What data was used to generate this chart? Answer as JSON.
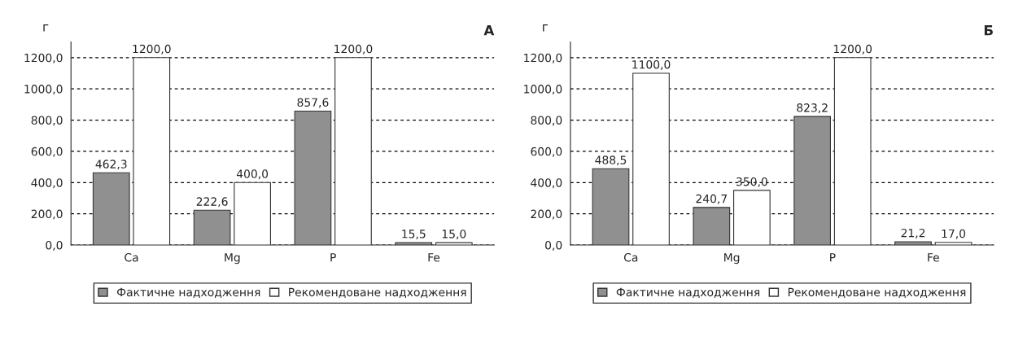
{
  "chart_data": [
    {
      "type": "bar",
      "title": "А",
      "ylabel": "г",
      "categories": [
        "Ca",
        "Mg",
        "P",
        "Fe"
      ],
      "series": [
        {
          "name": "Фактичне надходження",
          "color": "#909090",
          "values": [
            462.3,
            222.6,
            857.6,
            15.5
          ],
          "value_labels": [
            "462,3",
            "222,6",
            "857,6",
            "15,5"
          ]
        },
        {
          "name": "Рекомендоване надходження",
          "color": "#ffffff",
          "values": [
            1200.0,
            400.0,
            1200.0,
            15.0
          ],
          "value_labels": [
            "1200,0",
            "400,0",
            "1200,0",
            "15,0"
          ]
        }
      ],
      "ylim": [
        0,
        1300
      ],
      "yticks": [
        {
          "value": 0,
          "label": "0,0"
        },
        {
          "value": 200,
          "label": "200,0"
        },
        {
          "value": 400,
          "label": "400,0"
        },
        {
          "value": 600,
          "label": "600,0"
        },
        {
          "value": 800,
          "label": "800,0"
        },
        {
          "value": 1000,
          "label": "1000,0"
        },
        {
          "value": 1200,
          "label": "1200,0"
        }
      ],
      "grid": "y",
      "legend": "bottom"
    },
    {
      "type": "bar",
      "title": "Б",
      "ylabel": "г",
      "categories": [
        "Ca",
        "Mg",
        "P",
        "Fe"
      ],
      "series": [
        {
          "name": "Фактичне надходження",
          "color": "#909090",
          "values": [
            488.5,
            240.7,
            823.2,
            21.2
          ],
          "value_labels": [
            "488,5",
            "240,7",
            "823,2",
            "21,2"
          ]
        },
        {
          "name": "Рекомендоване надходження",
          "color": "#ffffff",
          "values": [
            1100.0,
            350.0,
            1200.0,
            17.0
          ],
          "value_labels": [
            "1100,0",
            "350,0",
            "1200,0",
            "17,0"
          ]
        }
      ],
      "ylim": [
        0,
        1300
      ],
      "yticks": [
        {
          "value": 0,
          "label": "0,0"
        },
        {
          "value": 200,
          "label": "200,0"
        },
        {
          "value": 400,
          "label": "400,0"
        },
        {
          "value": 600,
          "label": "600,0"
        },
        {
          "value": 800,
          "label": "800,0"
        },
        {
          "value": 1000,
          "label": "1000,0"
        },
        {
          "value": 1200,
          "label": "1200,0"
        }
      ],
      "grid": "y",
      "legend": "bottom"
    }
  ]
}
